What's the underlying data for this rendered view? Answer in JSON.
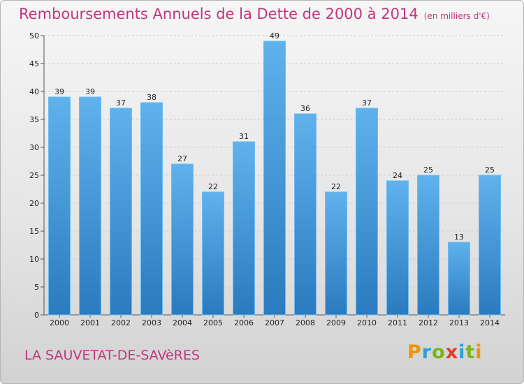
{
  "chart_data": {
    "type": "bar",
    "title": "Remboursements Annuels de la Dette de 2000 à 2014",
    "subtitle": "(en milliers d'€)",
    "categories": [
      "2000",
      "2001",
      "2002",
      "2003",
      "2004",
      "2005",
      "2006",
      "2007",
      "2008",
      "2009",
      "2010",
      "2011",
      "2012",
      "2013",
      "2014"
    ],
    "values": [
      39,
      39,
      37,
      38,
      27,
      22,
      31,
      49,
      36,
      22,
      37,
      24,
      25,
      13,
      25
    ],
    "ylim": [
      0,
      50
    ],
    "yticks": [
      0,
      5,
      10,
      15,
      20,
      25,
      30,
      35,
      40,
      45,
      50
    ],
    "xlabel": "",
    "ylabel": "",
    "grid": true,
    "bar_color": "#3a95da"
  },
  "footer": {
    "commune": "LA SAUVETAT-DE-SAVèRES",
    "logo_text": "Proxiti",
    "logo_colors": [
      "#f29400",
      "#2e9fd9",
      "#7ab51d",
      "#e83a2a",
      "#2e9fd9",
      "#7ab51d",
      "#f29400"
    ]
  },
  "colors": {
    "title": "#c2367a",
    "gridline": "#cfcfcf"
  }
}
